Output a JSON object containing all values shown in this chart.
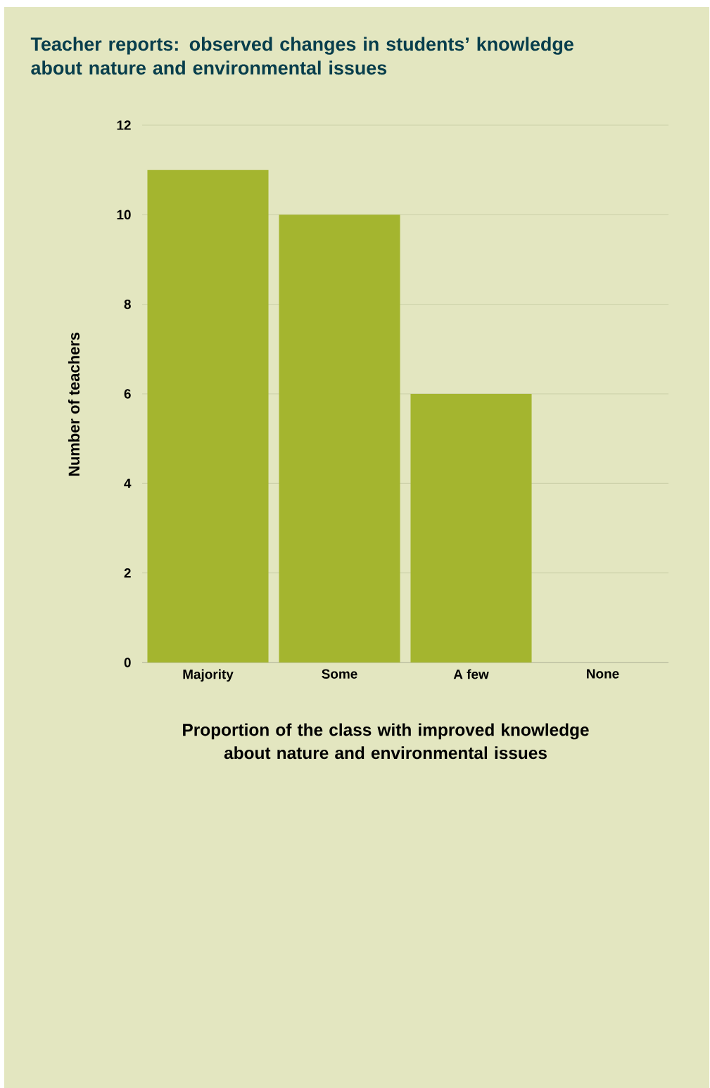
{
  "chart_data": {
    "type": "bar",
    "title": "Teacher reports: observed changes in students’ knowledge about nature and environmental issues",
    "xlabel": "Proportion of the class with improved knowledge about nature and environmental issues",
    "ylabel": "Number of teachers",
    "categories": [
      "Majority",
      "Some",
      "A few",
      "None"
    ],
    "values": [
      11,
      10,
      6,
      0
    ],
    "color": "#a4b52f",
    "ylim": [
      0,
      12
    ],
    "yticks": [
      0,
      2,
      4,
      6,
      8,
      10,
      12
    ],
    "grid": "y"
  }
}
